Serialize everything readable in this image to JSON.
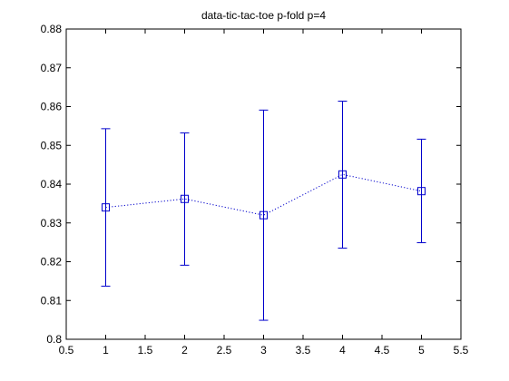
{
  "chart_data": {
    "type": "line",
    "title": "data-tic-tac-toe  p-fold p=4",
    "xlabel": "",
    "ylabel": "",
    "xlim": [
      0.5,
      5.5
    ],
    "ylim": [
      0.8,
      0.88
    ],
    "xticks": [
      0.5,
      1,
      1.5,
      2,
      2.5,
      3,
      3.5,
      4,
      4.5,
      5,
      5.5
    ],
    "xtick_labels": [
      "0.5",
      "1",
      "1.5",
      "2",
      "2.5",
      "3",
      "3.5",
      "4",
      "4.5",
      "5",
      "5.5"
    ],
    "yticks": [
      0.8,
      0.81,
      0.82,
      0.83,
      0.84,
      0.85,
      0.86,
      0.87,
      0.88
    ],
    "ytick_labels": [
      "0.8",
      "0.81",
      "0.82",
      "0.83",
      "0.84",
      "0.85",
      "0.86",
      "0.87",
      "0.88"
    ],
    "grid": false,
    "line_style": "dotted",
    "marker": "square",
    "color": "#0000cc",
    "series": [
      {
        "x": [
          1,
          2,
          3,
          4,
          5
        ],
        "y": [
          0.834,
          0.8362,
          0.832,
          0.8425,
          0.8382
        ],
        "err_low": [
          0.8137,
          0.8191,
          0.8049,
          0.8235,
          0.8249
        ],
        "err_high": [
          0.8543,
          0.8532,
          0.8591,
          0.8614,
          0.8516
        ]
      }
    ]
  }
}
